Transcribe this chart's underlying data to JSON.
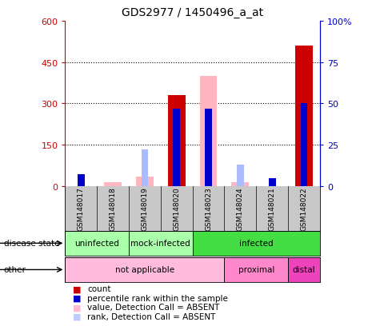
{
  "title": "GDS2977 / 1450496_a_at",
  "samples": [
    "GSM148017",
    "GSM148018",
    "GSM148019",
    "GSM148020",
    "GSM148023",
    "GSM148024",
    "GSM148021",
    "GSM148022"
  ],
  "red_values": [
    0,
    0,
    0,
    330,
    0,
    0,
    0,
    510
  ],
  "pink_values": [
    0,
    15,
    35,
    0,
    400,
    15,
    0,
    0
  ],
  "blue_values": [
    7,
    0,
    0,
    47,
    47,
    0,
    5,
    50
  ],
  "light_blue_values": [
    0,
    0,
    22,
    0,
    0,
    13,
    0,
    0
  ],
  "ylim_left": [
    0,
    600
  ],
  "ylim_right": [
    0,
    100
  ],
  "yticks_left": [
    0,
    150,
    300,
    450,
    600
  ],
  "ytick_labels_left": [
    "0",
    "150",
    "300",
    "450",
    "600"
  ],
  "yticks_right": [
    0,
    25,
    50,
    75,
    100
  ],
  "ytick_labels_right": [
    "0",
    "25",
    "50",
    "75",
    "100%"
  ],
  "left_axis_color": "#CC0000",
  "right_axis_color": "#0000CC",
  "ds_spans": [
    [
      0,
      2,
      "uninfected",
      "#aaffaa"
    ],
    [
      2,
      4,
      "mock-infected",
      "#aaffaa"
    ],
    [
      4,
      8,
      "infected",
      "#44dd44"
    ]
  ],
  "oth_spans": [
    [
      0,
      5,
      "not applicable",
      "#ffbbdd"
    ],
    [
      5,
      7,
      "proximal",
      "#ff88cc"
    ],
    [
      7,
      8,
      "distal",
      "#ee44bb"
    ]
  ],
  "legend_colors": [
    "#CC0000",
    "#0000CC",
    "#ffbbcc",
    "#bbccff"
  ],
  "legend_labels": [
    "count",
    "percentile rank within the sample",
    "value, Detection Call = ABSENT",
    "rank, Detection Call = ABSENT"
  ]
}
